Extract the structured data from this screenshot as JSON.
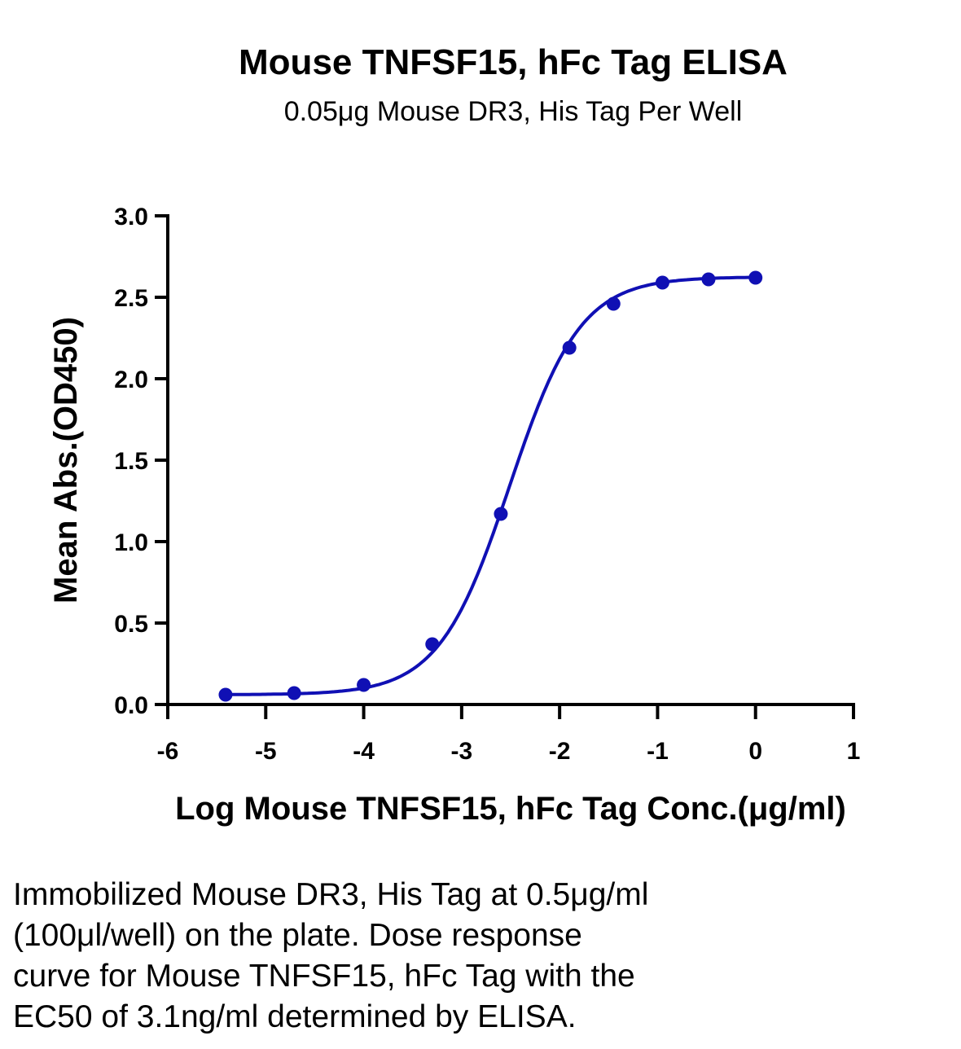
{
  "chart_data": {
    "type": "scatter",
    "title": "Mouse TNFSF15, hFc Tag ELISA",
    "subtitle": "0.05μg Mouse DR3, His Tag Per Well",
    "xlabel": "Log Mouse TNFSF15, hFc Tag Conc.(μg/ml)",
    "ylabel": "Mean Abs.(OD450)",
    "xlim": [
      -6,
      1
    ],
    "ylim": [
      0,
      3.0
    ],
    "x_ticks": [
      "-6",
      "-5",
      "-4",
      "-3",
      "-2",
      "-1",
      "0",
      "1"
    ],
    "y_ticks": [
      "0.0",
      "0.5",
      "1.0",
      "1.5",
      "2.0",
      "2.5",
      "3.0"
    ],
    "grid": false,
    "series": [
      {
        "x": [
          -5.41,
          -4.71,
          -4.0,
          -3.3,
          -2.6,
          -1.9,
          -1.45,
          -0.95,
          -0.48,
          0.0
        ],
        "y": [
          0.06,
          0.07,
          0.12,
          0.37,
          1.17,
          2.19,
          2.46,
          2.59,
          2.61,
          2.62
        ],
        "color": "#1010b4",
        "fit": "four-parameter logistic curve"
      }
    ],
    "caption": [
      "Immobilized Mouse DR3, His Tag at 0.5μg/ml",
      "(100μl/well) on the plate. Dose response",
      "curve for Mouse TNFSF15, hFc Tag with the",
      "EC50 of 3.1ng/ml determined by ELISA."
    ]
  }
}
